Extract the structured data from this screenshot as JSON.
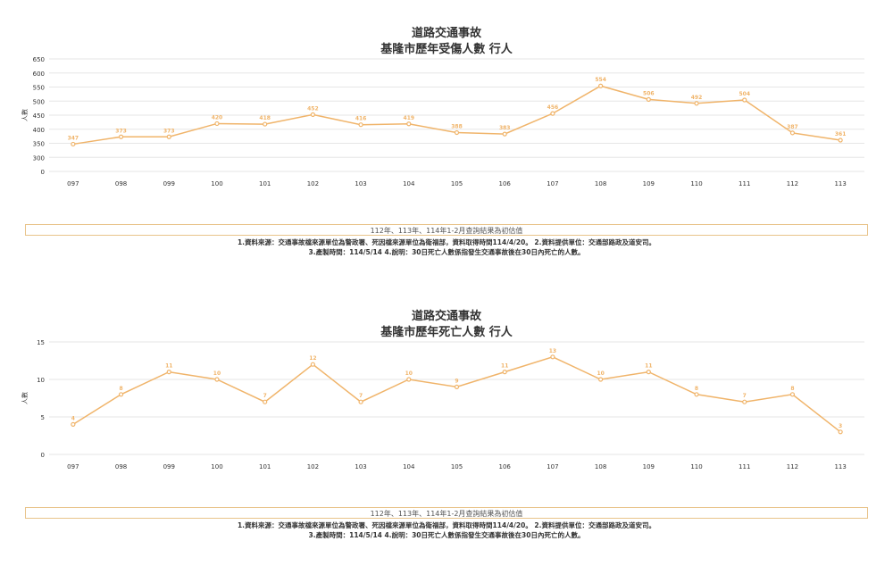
{
  "chart_data": [
    {
      "type": "line",
      "title": "道路交通事故",
      "subtitle": "基隆市歷年受傷人數 行人",
      "xlabel": "",
      "ylabel": "人數",
      "categories": [
        "097",
        "098",
        "099",
        "100",
        "101",
        "102",
        "103",
        "104",
        "105",
        "106",
        "107",
        "108",
        "109",
        "110",
        "111",
        "112",
        "113"
      ],
      "series": [
        {
          "values": [
            347,
            373,
            373,
            420,
            418,
            452,
            416,
            419,
            388,
            383,
            456,
            554,
            506,
            492,
            504,
            387,
            361
          ]
        }
      ],
      "ylim": [
        0,
        650
      ],
      "yticks": [
        0,
        300,
        350,
        400,
        450,
        500,
        550,
        600,
        650
      ],
      "grid": true,
      "line_color": "#f0b46a",
      "note": "112年、113年、114年1-2月查詢結果為初估值",
      "source_line1": "1.資料來源：交通事故檔來源單位為警政署、死因檔來源單位為衛福部，資料取得時間114/4/20。 2.資料提供單位：交通部路政及道安司。",
      "source_line2": "3.產製時間：114/5/14 4.說明：30日死亡人數係指發生交通事故後在30日內死亡的人數。"
    },
    {
      "type": "line",
      "title": "道路交通事故",
      "subtitle": "基隆市歷年死亡人數 行人",
      "xlabel": "",
      "ylabel": "人數",
      "categories": [
        "097",
        "098",
        "099",
        "100",
        "101",
        "102",
        "103",
        "104",
        "105",
        "106",
        "107",
        "108",
        "109",
        "110",
        "111",
        "112",
        "113"
      ],
      "series": [
        {
          "values": [
            4,
            8,
            11,
            10,
            7,
            12,
            7,
            10,
            9,
            11,
            13,
            10,
            11,
            8,
            7,
            8,
            3
          ]
        }
      ],
      "ylim": [
        0,
        15
      ],
      "yticks": [
        0,
        5,
        10,
        15
      ],
      "grid": true,
      "line_color": "#f0b46a",
      "note": "112年、113年、114年1-2月查詢結果為初估值",
      "source_line1": "1.資料來源：交通事故檔來源單位為警政署、死因檔來源單位為衛福部，資料取得時間114/4/20。 2.資料提供單位：交通部路政及道安司。",
      "source_line2": "3.產製時間：114/5/14 4.說明：30日死亡人數係指發生交通事故後在30日內死亡的人數。"
    }
  ]
}
